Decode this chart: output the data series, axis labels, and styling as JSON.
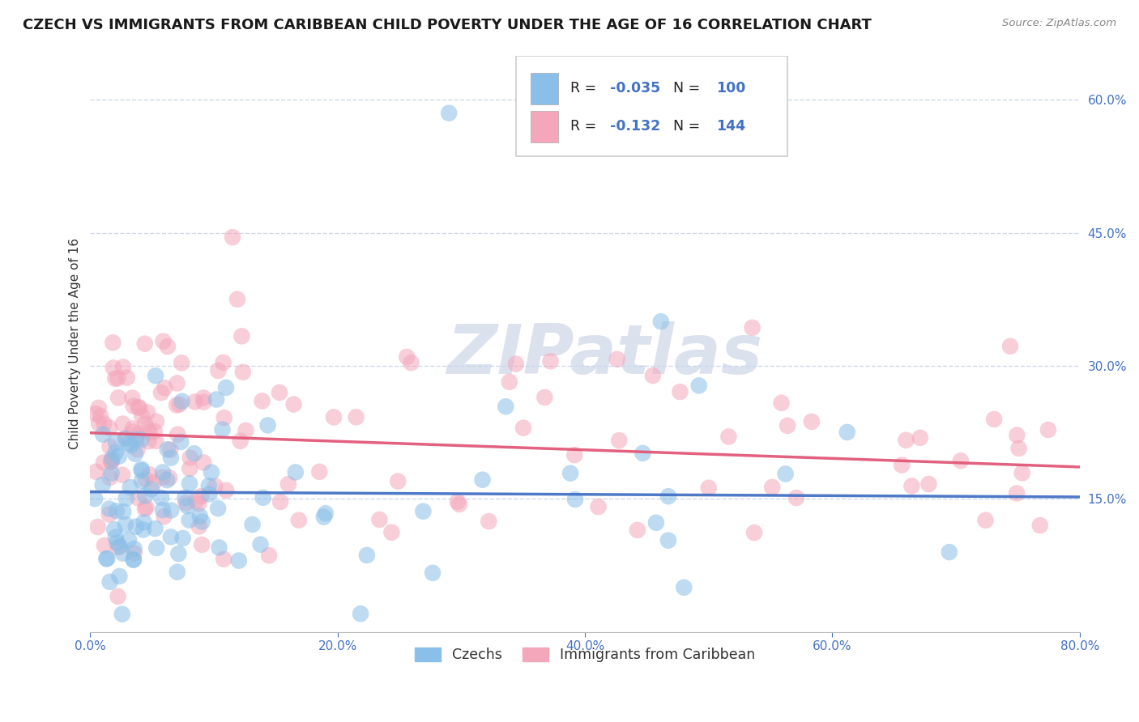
{
  "title": "CZECH VS IMMIGRANTS FROM CARIBBEAN CHILD POVERTY UNDER THE AGE OF 16 CORRELATION CHART",
  "source_text": "Source: ZipAtlas.com",
  "ylabel": "Child Poverty Under the Age of 16",
  "xlim": [
    0.0,
    0.8
  ],
  "ylim": [
    0.0,
    0.65
  ],
  "yticks": [
    0.15,
    0.3,
    0.45,
    0.6
  ],
  "ytick_labels": [
    "15.0%",
    "30.0%",
    "45.0%",
    "60.0%"
  ],
  "xticks": [
    0.0,
    0.2,
    0.4,
    0.6,
    0.8
  ],
  "xtick_labels": [
    "0.0%",
    "20.0%",
    "40.0%",
    "60.0%",
    "80.0%"
  ],
  "series": [
    {
      "name": "Czechs",
      "color": "#89bfe8",
      "R": -0.035,
      "N": 100,
      "trend_color": "#4472c4",
      "trend_style": "solid"
    },
    {
      "name": "Immigrants from Caribbean",
      "color": "#f4a7bb",
      "R": -0.132,
      "N": 144,
      "trend_color": "#e05878",
      "trend_style": "solid"
    }
  ],
  "watermark": "ZIPatlas",
  "watermark_color": "#cdd6e8",
  "background_color": "#ffffff",
  "grid_color": "#c8d4e8",
  "title_fontsize": 13,
  "axis_label_fontsize": 11,
  "tick_fontsize": 11,
  "tick_color": "#4472c4",
  "legend_value_color": "#4472c4",
  "legend_text_color": "#222222"
}
